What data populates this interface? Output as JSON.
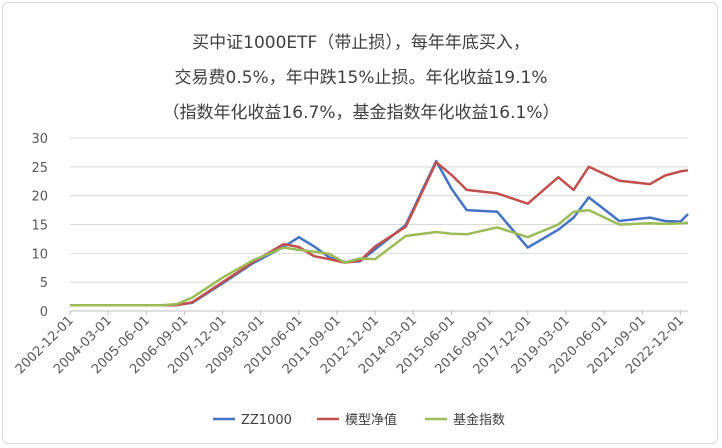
{
  "chart_data": {
    "type": "line",
    "title_lines": [
      "买中证1000ETF（带止损），每年年底买入，",
      "交易费0.5%，年中跌15%止损。年化收益19.1%",
      "（指数年化收益16.7%，基金指数年化收益16.1%）"
    ],
    "x_tick_labels": [
      "2002-12-01",
      "2004-03-01",
      "2005-06-01",
      "2006-09-01",
      "2007-12-01",
      "2009-03-01",
      "2010-06-01",
      "2011-09-01",
      "2012-12-01",
      "2014-03-01",
      "2015-06-01",
      "2016-09-01",
      "2017-12-01",
      "2019-03-01",
      "2020-06-01",
      "2021-09-01",
      "2022-12-01"
    ],
    "ylim": [
      0,
      30
    ],
    "y_ticks": [
      0,
      5,
      10,
      15,
      20,
      25,
      30
    ],
    "grid": "horizontal",
    "legend_position": "bottom",
    "x": [
      "2002-12",
      "2003-12",
      "2004-12",
      "2005-12",
      "2006-06",
      "2006-12",
      "2007-12",
      "2008-12",
      "2009-12",
      "2010-06",
      "2010-12",
      "2011-06",
      "2011-12",
      "2012-06",
      "2012-12",
      "2013-12",
      "2014-12",
      "2015-06",
      "2015-12",
      "2016-12",
      "2017-12",
      "2018-12",
      "2019-06",
      "2019-12",
      "2020-12",
      "2021-12",
      "2022-06",
      "2022-12",
      "2023-03"
    ],
    "series": [
      {
        "name": "ZZ1000",
        "color": "#4472c4",
        "values": [
          1,
          1,
          1,
          1,
          1.1,
          1.4,
          4.8,
          8.3,
          11.1,
          12.8,
          11.2,
          9.3,
          8.5,
          8.6,
          10.7,
          14.9,
          26.0,
          21.2,
          17.5,
          17.2,
          11.0,
          14.1,
          16.2,
          19.7,
          15.6,
          16.2,
          15.6,
          15.5,
          16.8
        ]
      },
      {
        "name": "模型净值",
        "color": "#c0504d",
        "values": [
          1,
          1,
          1,
          1,
          1.0,
          1.5,
          5.0,
          8.5,
          11.6,
          11.1,
          9.5,
          9.0,
          8.4,
          8.7,
          11.2,
          14.6,
          25.8,
          23.6,
          21.0,
          20.4,
          18.6,
          23.2,
          21.0,
          25.0,
          22.6,
          22.0,
          23.5,
          24.2,
          24.4
        ]
      },
      {
        "name": "基金指数",
        "color": "#9bbb59",
        "values": [
          1,
          1,
          1,
          1,
          1.2,
          2.3,
          5.8,
          8.8,
          11.0,
          10.6,
          10.3,
          9.9,
          8.4,
          9.1,
          9.0,
          13.0,
          13.7,
          13.4,
          13.3,
          14.5,
          12.8,
          15.0,
          17.2,
          17.5,
          15.0,
          15.2,
          15.1,
          15.2,
          15.3
        ]
      }
    ]
  }
}
